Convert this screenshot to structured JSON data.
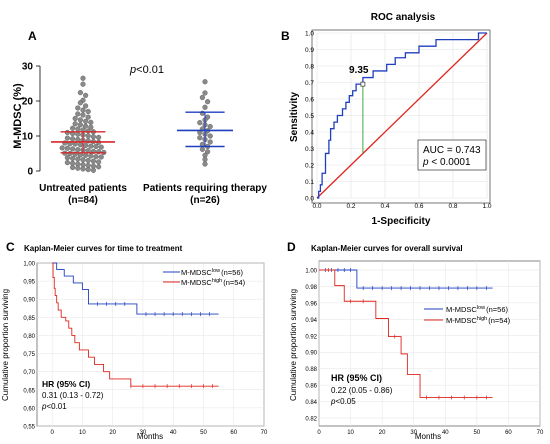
{
  "chart_data": [
    {
      "panel": "A",
      "type": "scatter",
      "subtype": "dot-plot",
      "title": "",
      "annotation": "p<0.01",
      "annotation_p": "p",
      "annotation_rest": "<0.01",
      "ylabel": "M-MDSC (%)",
      "ylim": [
        0,
        30
      ],
      "yticks": [
        "0",
        "10",
        "20",
        "30"
      ],
      "grid": false,
      "series": [
        {
          "category_label": "Untreated patients",
          "n_label": "(n=84)",
          "mean": 8.3,
          "sd_low": 5.2,
          "sd_high": 11.2,
          "point_color": "#8a8a8a",
          "line_color": "#d62728",
          "values": [
            26.5,
            24.8,
            22.4,
            21.6,
            20.2,
            19.5,
            18.6,
            18.0,
            17.4,
            17.0,
            16.3,
            16.0,
            15.4,
            15.0,
            14.6,
            14.2,
            13.9,
            13.5,
            13.2,
            12.8,
            12.5,
            12.2,
            12.0,
            11.7,
            11.4,
            11.2,
            11.0,
            10.7,
            10.5,
            10.3,
            10.0,
            9.8,
            9.6,
            9.4,
            9.2,
            9.0,
            8.8,
            8.6,
            8.4,
            8.2,
            8.0,
            7.8,
            7.7,
            7.5,
            7.3,
            7.1,
            7.0,
            6.8,
            6.6,
            6.5,
            6.3,
            6.1,
            6.0,
            5.8,
            5.6,
            5.5,
            5.3,
            5.1,
            5.0,
            4.8,
            4.6,
            4.5,
            4.3,
            4.1,
            4.0,
            3.8,
            3.6,
            3.4,
            3.2,
            3.0,
            2.8,
            2.6,
            2.4,
            2.2,
            2.0,
            1.8,
            1.6,
            1.4,
            1.2,
            1.0,
            0.8,
            0.6,
            0.4,
            0.2
          ]
        },
        {
          "category_label": "Patients requiring therapy",
          "n_label": "(n=26)",
          "mean": 11.6,
          "sd_low": 7.0,
          "sd_high": 16.8,
          "point_color": "#8a8a8a",
          "line_color": "#1f3fbf",
          "values": [
            25.5,
            22.3,
            21.0,
            19.8,
            18.2,
            16.5,
            15.4,
            14.6,
            13.8,
            13.2,
            12.7,
            12.0,
            11.5,
            11.0,
            10.5,
            10.0,
            9.5,
            9.0,
            8.3,
            7.6,
            7.0,
            6.2,
            5.5,
            4.5,
            3.3,
            2.0
          ]
        }
      ]
    },
    {
      "panel": "B",
      "type": "line",
      "title": "ROC analysis",
      "xlabel": "1-Specificity",
      "ylabel": "Sensitivity",
      "xlim": [
        0,
        1
      ],
      "ylim": [
        0,
        1
      ],
      "xticks": [
        "0.0",
        "0.2",
        "0.4",
        "0.6",
        "0.8",
        "1.0"
      ],
      "yticks": [
        "0.0",
        "0.1",
        "0.2",
        "0.3",
        "0.4",
        "0.5",
        "0.6",
        "0.7",
        "0.8",
        "0.9",
        "1.0"
      ],
      "grid": true,
      "cutoff_label": "9.35",
      "cutoff_point": [
        0.27,
        0.69
      ],
      "auc_text": "AUC = 0.743",
      "p_text_prefix": "p",
      "p_text_rest": " < 0.0001",
      "curve_color": "#1f3fbf",
      "diagonal_color": "#e0261f",
      "cutoff_line_color": "#2ca02c",
      "roc_x": [
        0.0,
        0.01,
        0.01,
        0.02,
        0.02,
        0.03,
        0.03,
        0.05,
        0.05,
        0.07,
        0.07,
        0.08,
        0.08,
        0.1,
        0.1,
        0.12,
        0.12,
        0.15,
        0.15,
        0.17,
        0.17,
        0.19,
        0.19,
        0.21,
        0.21,
        0.23,
        0.23,
        0.27,
        0.27,
        0.33,
        0.33,
        0.41,
        0.41,
        0.46,
        0.46,
        0.52,
        0.52,
        0.6,
        0.6,
        0.7,
        0.7,
        0.95,
        0.95,
        1.0
      ],
      "roc_y": [
        0.0,
        0.0,
        0.04,
        0.04,
        0.08,
        0.08,
        0.15,
        0.15,
        0.27,
        0.27,
        0.35,
        0.35,
        0.42,
        0.42,
        0.46,
        0.46,
        0.5,
        0.5,
        0.54,
        0.54,
        0.58,
        0.58,
        0.62,
        0.62,
        0.65,
        0.65,
        0.69,
        0.69,
        0.73,
        0.73,
        0.77,
        0.77,
        0.81,
        0.81,
        0.85,
        0.85,
        0.88,
        0.88,
        0.92,
        0.92,
        0.96,
        0.96,
        1.0,
        1.0
      ]
    },
    {
      "panel": "C",
      "type": "line",
      "subtype": "kaplan-meier",
      "title": "Kaplan-Meier curves for time to treatment",
      "xlabel": "Months",
      "ylabel": "Cumulative proportion surviving",
      "xlim": [
        -5,
        70
      ],
      "ylim": [
        0.55,
        1.0
      ],
      "xticks": [
        "0",
        "10",
        "20",
        "30",
        "40",
        "50",
        "60",
        "70"
      ],
      "yticks": [
        "0,55",
        "0,60",
        "0,65",
        "0,70",
        "0,75",
        "0,80",
        "0,85",
        "0,90",
        "0,95",
        "1,00"
      ],
      "grid": true,
      "legend_placement": "top-right",
      "hr_label": "HR (95% CI)",
      "hr_value": "0.31 (0.13 - 0.72)",
      "p_prefix": "p",
      "p_rest": "<0.01",
      "series": [
        {
          "name": "M-MDSC",
          "name_sup": "low",
          "n_label": "(n=56)",
          "color": "#1f3fbf",
          "times": [
            0,
            1.5,
            4,
            7,
            10,
            12,
            28,
            55
          ],
          "surv": [
            1.0,
            0.982,
            0.964,
            0.945,
            0.927,
            0.887,
            0.859,
            0.859
          ]
        },
        {
          "name": "M-MDSC",
          "name_sup": "high",
          "n_label": "(n=54)",
          "color": "#e0261f",
          "times": [
            0,
            0.3,
            0.7,
            1.0,
            1.5,
            2.0,
            3.0,
            4.5,
            5.5,
            6.5,
            7.5,
            9.0,
            12.0,
            14.0,
            17.0,
            19.0,
            26.0,
            55.0
          ],
          "surv": [
            1.0,
            0.96,
            0.93,
            0.91,
            0.89,
            0.87,
            0.85,
            0.84,
            0.82,
            0.8,
            0.78,
            0.76,
            0.74,
            0.72,
            0.7,
            0.68,
            0.66,
            0.66
          ]
        }
      ]
    },
    {
      "panel": "D",
      "type": "line",
      "subtype": "kaplan-meier",
      "title": "Kaplan-Meier curves for overall survival",
      "xlabel": "Months",
      "ylabel": "Cumulative proportion surviving",
      "xlim": [
        0,
        70
      ],
      "ylim": [
        0.82,
        1.0
      ],
      "xticks": [
        "0",
        "10",
        "20",
        "30",
        "40",
        "50",
        "60",
        "70"
      ],
      "yticks": [
        "0.82",
        "0.84",
        "0.86",
        "0.88",
        "0.90",
        "0.92",
        "0.94",
        "0.96",
        "0.98",
        "1.00"
      ],
      "grid": true,
      "legend_placement": "center-right",
      "hr_label": "HR (95% CI)",
      "hr_value": "0.22 (0.05 - 0.86)",
      "p_prefix": "p",
      "p_rest": "<0.05",
      "series": [
        {
          "name": "M-MDSC",
          "name_sup": "low",
          "n_label": "(n=56)",
          "color": "#1f3fbf",
          "times": [
            0,
            12,
            55
          ],
          "surv": [
            1.0,
            0.978,
            0.978
          ]
        },
        {
          "name": "M-MDSC",
          "name_sup": "high",
          "n_label": "(n=54)",
          "color": "#e0261f",
          "times": [
            0,
            5,
            8,
            18,
            22,
            26,
            28,
            32,
            55
          ],
          "surv": [
            1.0,
            0.981,
            0.962,
            0.941,
            0.919,
            0.898,
            0.873,
            0.845,
            0.845
          ]
        }
      ]
    }
  ],
  "panel_labels": [
    "A",
    "B",
    "C",
    "D"
  ]
}
